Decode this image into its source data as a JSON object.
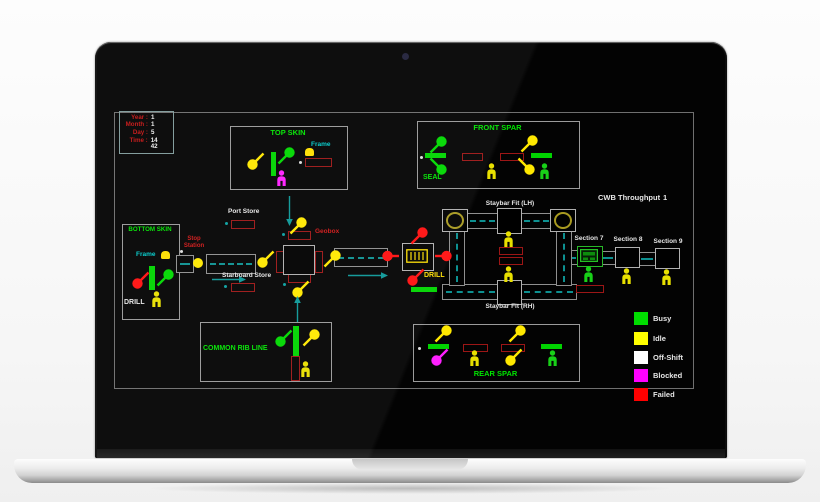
{
  "screen": {
    "clock": {
      "rows": [
        {
          "label": "Year :",
          "value": "1"
        },
        {
          "label": "Month :",
          "value": "1"
        },
        {
          "label": "Day :",
          "value": "5"
        },
        {
          "label": "Time :",
          "value": "14 42"
        }
      ]
    },
    "stations": {
      "top_skin": {
        "title": "TOP SKIN",
        "frame_label": "Frame"
      },
      "front_spar": {
        "title": "FRONT SPAR",
        "seal_label": "SEAL"
      },
      "bottom_skin": {
        "title": "BOTTOM SKIN",
        "frame_label": "Frame",
        "drill_label": "DRILL"
      },
      "common_rib_line": {
        "title": "COMMON RIB LINE"
      },
      "rear_spar": {
        "title": "REAR SPAR"
      },
      "stop_station": {
        "line1": "Stop",
        "line2": "Station"
      },
      "port_store": {
        "label": "Port Store"
      },
      "starboard_store": {
        "label": "Starboard Store"
      },
      "geobox": {
        "label": "Geobox"
      },
      "drill_station": {
        "label": "DRILL"
      },
      "staybar_lh": {
        "label": "Staybar Fit (LH)"
      },
      "staybar_rh": {
        "label": "Staybar Fit (RH)"
      },
      "section7": {
        "label": "Section 7"
      },
      "section8": {
        "label": "Section 8"
      },
      "section9": {
        "label": "Section 9"
      }
    },
    "throughput": {
      "label": "CWB Throughput",
      "value": "1"
    },
    "legend": {
      "items": [
        {
          "label": "Busy",
          "color": "#00dd00"
        },
        {
          "label": "Idle",
          "color": "#ffff00"
        },
        {
          "label": "Off-Shift",
          "color": "#ffffff"
        },
        {
          "label": "Blocked",
          "color": "#ff00ff"
        },
        {
          "label": "Failed",
          "color": "#ff0000"
        }
      ]
    }
  }
}
